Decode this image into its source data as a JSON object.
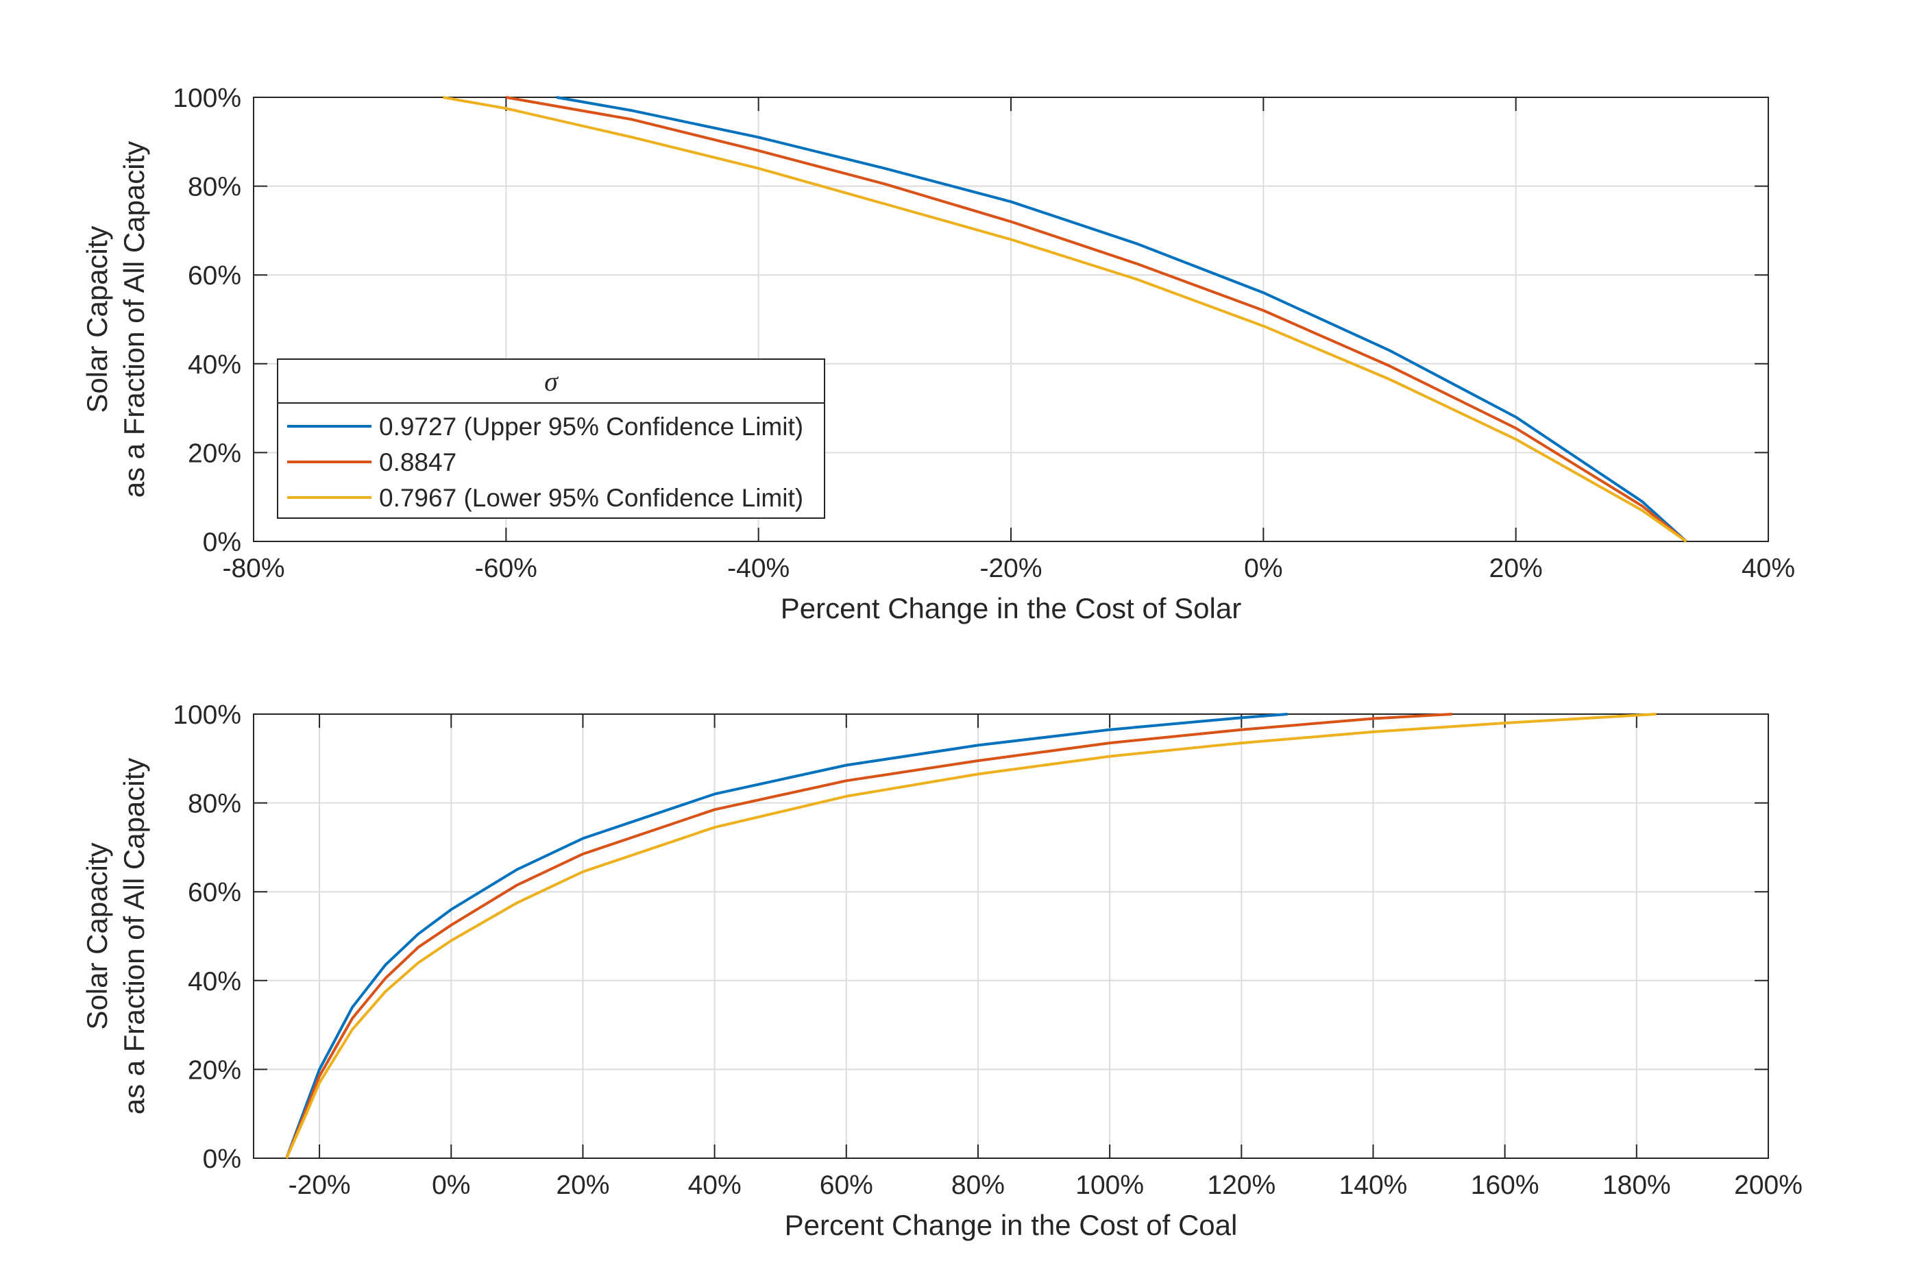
{
  "colors": {
    "upper": "#0072BD",
    "mid": "#D95319",
    "lower": "#EDB120",
    "grid": "#dcdcdc",
    "axis": "#262626"
  },
  "legend": {
    "title": "σ",
    "entries": [
      {
        "label": "0.9727 (Upper 95% Confidence Limit)",
        "color": "#0072BD"
      },
      {
        "label": "0.8847",
        "color": "#D95319"
      },
      {
        "label": "0.7967 (Lower 95% Confidence Limit)",
        "color": "#EDB120"
      }
    ]
  },
  "chart_data": [
    {
      "type": "line",
      "xlabel": "Percent Change in the Cost of Solar",
      "ylabel_line1": "Solar Capacity",
      "ylabel_line2": "as a Fraction of All Capacity",
      "xlim": [
        -80,
        40
      ],
      "ylim": [
        0,
        100
      ],
      "x_ticks": [
        -80,
        -60,
        -40,
        -20,
        0,
        20,
        40
      ],
      "x_tick_labels": [
        "-80%",
        "-60%",
        "-40%",
        "-20%",
        "0%",
        "20%",
        "40%"
      ],
      "y_ticks": [
        0,
        20,
        40,
        60,
        80,
        100
      ],
      "y_tick_labels": [
        "0%",
        "20%",
        "40%",
        "60%",
        "80%",
        "100%"
      ],
      "grid": true,
      "legend_position": "lower-left",
      "series": [
        {
          "name": "0.9727 (Upper 95% Confidence Limit)",
          "color": "#0072BD",
          "x": [
            -56,
            -50,
            -40,
            -30,
            -20,
            -10,
            0,
            10,
            20,
            30,
            33.5
          ],
          "y": [
            100,
            97,
            91,
            84,
            76.5,
            67,
            56,
            43,
            28,
            9,
            0
          ]
        },
        {
          "name": "0.8847",
          "color": "#D95319",
          "x": [
            -60,
            -50,
            -40,
            -30,
            -20,
            -10,
            0,
            10,
            20,
            30,
            33.5
          ],
          "y": [
            100,
            95,
            88,
            80.5,
            72,
            62.5,
            52,
            39.5,
            25.5,
            8,
            0
          ]
        },
        {
          "name": "0.7967 (Lower 95% Confidence Limit)",
          "color": "#EDB120",
          "x": [
            -65,
            -60,
            -50,
            -40,
            -30,
            -20,
            -10,
            0,
            10,
            20,
            30,
            33.5
          ],
          "y": [
            100,
            97.5,
            91,
            84,
            76,
            68,
            59,
            48.5,
            36.5,
            23,
            7,
            0
          ]
        }
      ]
    },
    {
      "type": "line",
      "xlabel": "Percent Change in the Cost of Coal",
      "ylabel_line1": "Solar Capacity",
      "ylabel_line2": "as a Fraction of All Capacity",
      "xlim": [
        -30,
        200
      ],
      "ylim": [
        0,
        100
      ],
      "x_ticks": [
        -20,
        0,
        20,
        40,
        60,
        80,
        100,
        120,
        140,
        160,
        180,
        200
      ],
      "x_tick_labels": [
        "-20%",
        "0%",
        "20%",
        "40%",
        "60%",
        "80%",
        "100%",
        "120%",
        "140%",
        "160%",
        "180%",
        "200%"
      ],
      "y_ticks": [
        0,
        20,
        40,
        60,
        80,
        100
      ],
      "y_tick_labels": [
        "0%",
        "20%",
        "40%",
        "60%",
        "80%",
        "100%"
      ],
      "grid": true,
      "series": [
        {
          "name": "0.9727 (Upper 95% Confidence Limit)",
          "color": "#0072BD",
          "x": [
            -25,
            -22,
            -20,
            -15,
            -10,
            -5,
            0,
            10,
            20,
            40,
            60,
            80,
            100,
            120,
            127
          ],
          "y": [
            0,
            12,
            20,
            34,
            43.5,
            50.5,
            56,
            65,
            72,
            82,
            88.5,
            93,
            96.5,
            99.2,
            100
          ]
        },
        {
          "name": "0.8847",
          "color": "#D95319",
          "x": [
            -25,
            -22,
            -20,
            -15,
            -10,
            -5,
            0,
            10,
            20,
            40,
            60,
            80,
            100,
            120,
            140,
            152
          ],
          "y": [
            0,
            11,
            18.5,
            31.5,
            40.5,
            47.5,
            52.5,
            61.5,
            68.5,
            78.5,
            85,
            89.5,
            93.5,
            96.5,
            99,
            100
          ]
        },
        {
          "name": "0.7967 (Lower 95% Confidence Limit)",
          "color": "#EDB120",
          "x": [
            -25,
            -22,
            -20,
            -15,
            -10,
            -5,
            0,
            10,
            20,
            40,
            60,
            80,
            100,
            120,
            140,
            160,
            183
          ],
          "y": [
            0,
            10,
            17,
            29,
            37.5,
            44,
            49,
            57.5,
            64.5,
            74.5,
            81.5,
            86.5,
            90.5,
            93.5,
            96,
            98,
            100
          ]
        }
      ]
    }
  ]
}
